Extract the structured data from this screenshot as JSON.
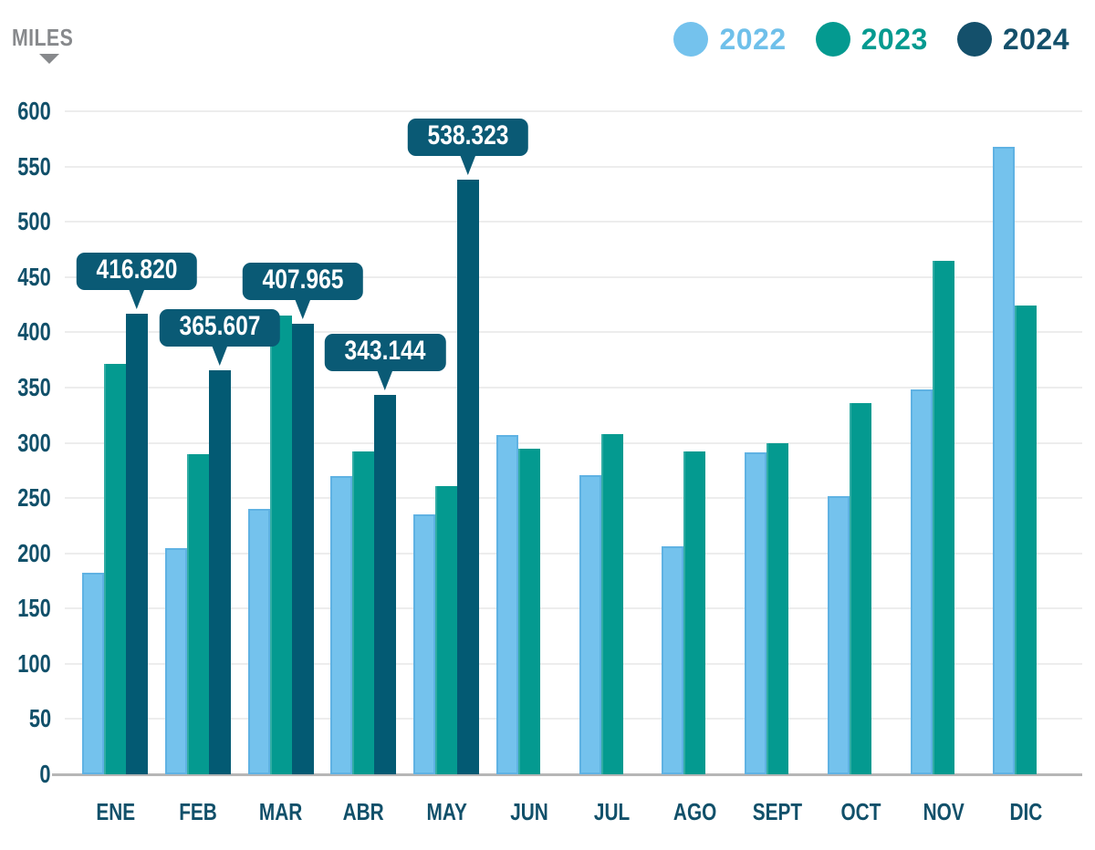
{
  "header": {
    "unit_label": "MILES"
  },
  "legend": {
    "position": "top-right",
    "items": [
      {
        "label": "2022",
        "color": "#74c2ed",
        "text_color": "#6fc0ea"
      },
      {
        "label": "2023",
        "color": "#049a90",
        "text_color": "#049a90"
      },
      {
        "label": "2024",
        "color": "#14506b",
        "text_color": "#14506b"
      }
    ]
  },
  "chart_data": {
    "type": "bar",
    "title": "",
    "unit_label": "MILES",
    "categories": [
      "ENE",
      "FEB",
      "MAR",
      "ABR",
      "MAY",
      "JUN",
      "JUL",
      "AGO",
      "SEPT",
      "OCT",
      "NOV",
      "DIC"
    ],
    "series": [
      {
        "name": "2022",
        "color": "#74c2ed",
        "values": [
          182,
          205,
          240,
          270,
          235,
          307,
          271,
          206,
          291,
          252,
          348,
          568
        ]
      },
      {
        "name": "2023",
        "color": "#049a90",
        "values": [
          371,
          290,
          415,
          292,
          261,
          295,
          308,
          292,
          300,
          336,
          465,
          424
        ]
      },
      {
        "name": "2024",
        "color": "#035a73",
        "values": [
          416.82,
          365.607,
          407.965,
          343.144,
          538.323,
          null,
          null,
          null,
          null,
          null,
          null,
          null
        ]
      }
    ],
    "annotations": [
      {
        "category_index": 0,
        "series": "2024",
        "label": "416.820"
      },
      {
        "category_index": 1,
        "series": "2024",
        "label": "365.607"
      },
      {
        "category_index": 2,
        "series": "2024",
        "label": "407.965"
      },
      {
        "category_index": 3,
        "series": "2024",
        "label": "343.144"
      },
      {
        "category_index": 4,
        "series": "2024",
        "label": "538.323"
      }
    ],
    "ylim": [
      0,
      600
    ],
    "ytick_step": 50,
    "grid": true,
    "legend_position": "top-right"
  },
  "colors": {
    "axis_text": "#11506a",
    "gridline": "#ededed",
    "zero_line": "#b6b6b6",
    "callout_bg": "#0a5a75",
    "miles_gray": "#87898c",
    "background": "#ffffff"
  }
}
